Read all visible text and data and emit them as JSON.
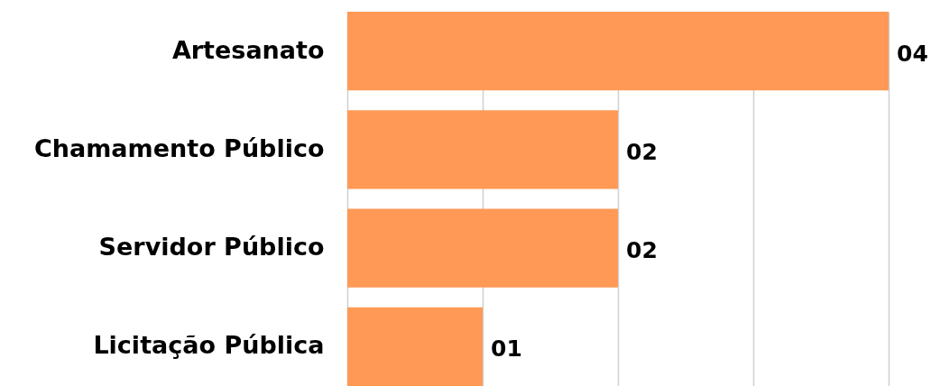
{
  "chart_data": {
    "type": "bar",
    "orientation": "horizontal",
    "categories": [
      "Artesanato",
      "Chamamento Público",
      "Servidor Público",
      "Licitação Pública"
    ],
    "values": [
      4,
      2,
      2,
      1
    ],
    "value_labels": [
      "04",
      "02",
      "02",
      "01"
    ],
    "color": "#ff9955",
    "xlim": [
      0,
      4
    ],
    "xticks": [
      {
        "value": 0,
        "label": null
      },
      {
        "value": 1,
        "label": null
      },
      {
        "value": 2,
        "label": null
      },
      {
        "value": 3,
        "label": null
      },
      {
        "value": 4,
        "label": null
      }
    ],
    "grid": "x",
    "tick_labels": "y"
  }
}
